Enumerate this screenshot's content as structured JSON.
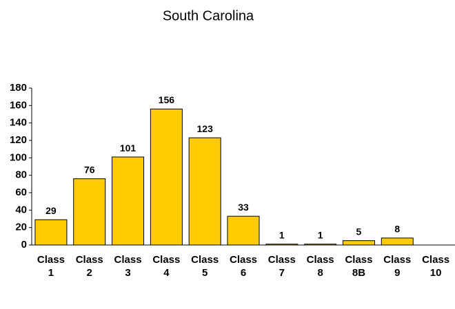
{
  "chart_data": {
    "type": "bar",
    "title": "South Carolina",
    "categories": [
      "Class 1",
      "Class 2",
      "Class 3",
      "Class 4",
      "Class 5",
      "Class 6",
      "Class 7",
      "Class 8",
      "Class 8B",
      "Class 9",
      "Class 10"
    ],
    "values": [
      29,
      76,
      101,
      156,
      123,
      33,
      1,
      1,
      5,
      8,
      null
    ],
    "color": "#ffcc00",
    "ylim": [
      0,
      180
    ],
    "yticks": [
      0,
      20,
      40,
      60,
      80,
      100,
      120,
      140,
      160,
      180
    ],
    "grid": false
  }
}
